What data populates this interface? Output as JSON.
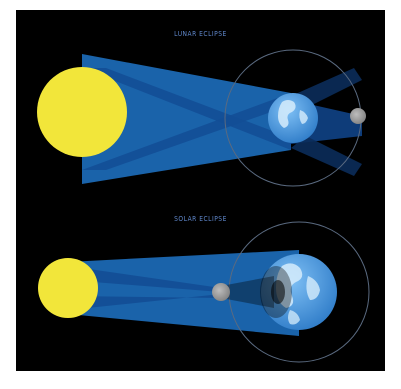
{
  "lunar_eclipse": {
    "title": "LUNAR ECLIPSE"
  },
  "solar_eclipse": {
    "title": "SOLAR ECLIPSE"
  },
  "colors": {
    "background": "#000000",
    "sun": "#f2e63a",
    "light_beam": "#1f74c8",
    "shadow_beam": "#0f3f7f",
    "earth_ocean": "#4b9be5",
    "earth_land": "#d6ecfb",
    "moon": "#a3a3a3",
    "orbit": "#5a6a80",
    "title": "#5f86c9"
  },
  "icons": [
    "sun-icon",
    "earth-icon",
    "moon-icon",
    "orbit-ring"
  ]
}
